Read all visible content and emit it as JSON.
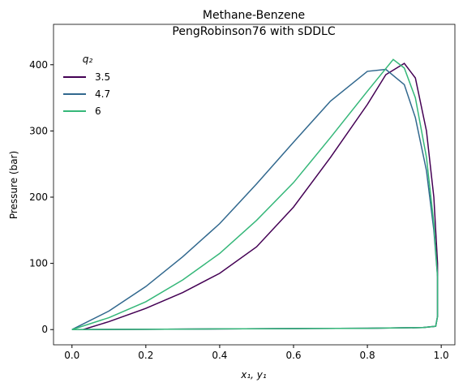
{
  "chart_data": {
    "type": "line",
    "title": "Methane-Benzene",
    "subtitle": "PengRobinson76 with sDDLC",
    "x_label": "x₁, y₁",
    "y_label": "Pressure (bar)",
    "legend_title": "q₂",
    "legend_position": "upper left",
    "xlim": [
      -0.05,
      1.037
    ],
    "ylim": [
      -23,
      461
    ],
    "xticks": [
      {
        "value": 0,
        "label": "0.0"
      },
      0.2,
      0.4,
      0.6,
      0.8,
      {
        "value": 1,
        "label": "1.0"
      }
    ],
    "yticks": [
      0,
      100,
      200,
      300,
      400
    ],
    "series": [
      {
        "name": "3.5",
        "color": "#440154",
        "x": [
          0.03,
          0.1,
          0.2,
          0.3,
          0.4,
          0.5,
          0.6,
          0.7,
          0.8,
          0.85,
          0.9,
          0.93,
          0.96,
          0.98,
          0.99,
          0.99,
          0.985,
          0.95,
          0.8,
          0.6,
          0.4,
          0.2,
          0.03
        ],
        "values": [
          0,
          12,
          32,
          56,
          85,
          125,
          185,
          260,
          340,
          385,
          402,
          380,
          300,
          200,
          100,
          20,
          5,
          3,
          2,
          1.5,
          1,
          0.5,
          0
        ]
      },
      {
        "name": "4.7",
        "color": "#31688e",
        "x": [
          0,
          0.1,
          0.2,
          0.3,
          0.4,
          0.5,
          0.6,
          0.7,
          0.8,
          0.85,
          0.9,
          0.93,
          0.96,
          0.98,
          0.99,
          0.99,
          0.985,
          0.95,
          0.8,
          0.6,
          0.4,
          0.2,
          0
        ],
        "values": [
          0,
          28,
          65,
          110,
          160,
          220,
          283,
          345,
          390,
          393,
          370,
          320,
          240,
          150,
          80,
          20,
          5,
          3,
          2,
          1.5,
          1,
          0.5,
          0
        ]
      },
      {
        "name": "6",
        "color": "#35b779",
        "x": [
          0,
          0.1,
          0.2,
          0.3,
          0.4,
          0.5,
          0.6,
          0.7,
          0.8,
          0.87,
          0.9,
          0.93,
          0.96,
          0.98,
          0.99,
          0.99,
          0.985,
          0.95,
          0.8,
          0.6,
          0.4,
          0.2,
          0
        ],
        "values": [
          0,
          18,
          42,
          75,
          115,
          165,
          222,
          290,
          360,
          408,
          395,
          350,
          260,
          160,
          80,
          20,
          5,
          3,
          2,
          1.5,
          1,
          0.5,
          0
        ]
      }
    ]
  }
}
